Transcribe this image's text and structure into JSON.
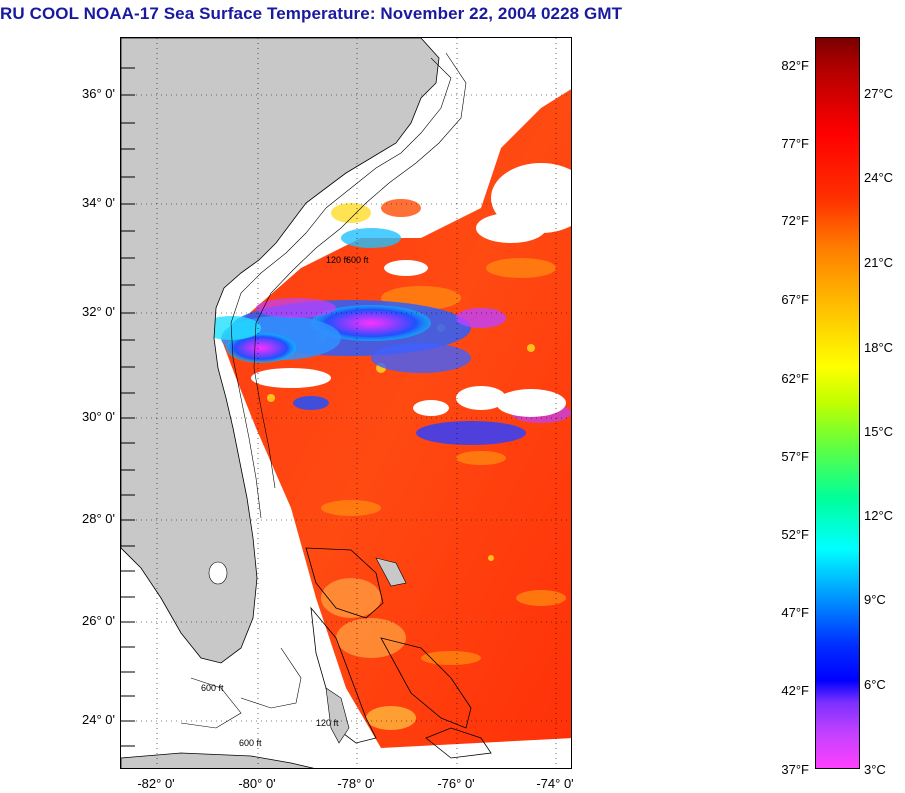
{
  "title": "RU COOL  NOAA-17  Sea Surface Temperature:  November 22, 2004 0228 GMT",
  "map": {
    "latitude_labels": [
      "36° 0'",
      "34° 0'",
      "32° 0'",
      "30° 0'",
      "28° 0'",
      "26° 0'",
      "24° 0'"
    ],
    "longitude_labels": [
      "-82° 0'",
      "-80° 0'",
      "-78° 0'",
      "-76° 0'",
      "-74° 0'"
    ],
    "contour_labels": [
      "120 ft",
      "600 ft"
    ],
    "land_color": "#c8c8c8",
    "cloud_color": "#ffffff"
  },
  "colorbar": {
    "fahrenheit_labels": [
      "82°F",
      "77°F",
      "72°F",
      "67°F",
      "62°F",
      "57°F",
      "52°F",
      "47°F",
      "42°F",
      "37°F"
    ],
    "celsius_labels": [
      "27°C",
      "24°C",
      "21°C",
      "18°C",
      "15°C",
      "12°C",
      "9°C",
      "6°C",
      "3°C"
    ]
  }
}
